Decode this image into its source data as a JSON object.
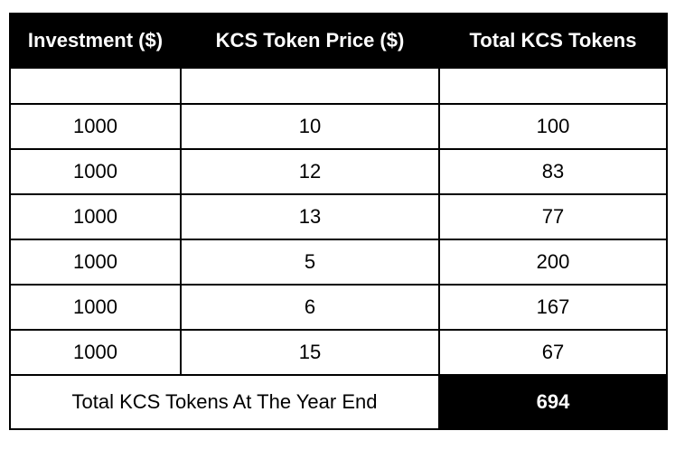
{
  "table": {
    "headers": [
      "Investment ($)",
      "KCS Token Price ($)",
      "Total KCS Tokens"
    ],
    "rows": [
      [
        "1000",
        "10",
        "100"
      ],
      [
        "1000",
        "12",
        "83"
      ],
      [
        "1000",
        "13",
        "77"
      ],
      [
        "1000",
        "5",
        "200"
      ],
      [
        "1000",
        "6",
        "167"
      ],
      [
        "1000",
        "15",
        "67"
      ]
    ],
    "total_label": "Total KCS Tokens At The Year End",
    "total_value": "694"
  },
  "colors": {
    "header_bg": "#000000",
    "header_text": "#ffffff",
    "border": "#000000"
  }
}
